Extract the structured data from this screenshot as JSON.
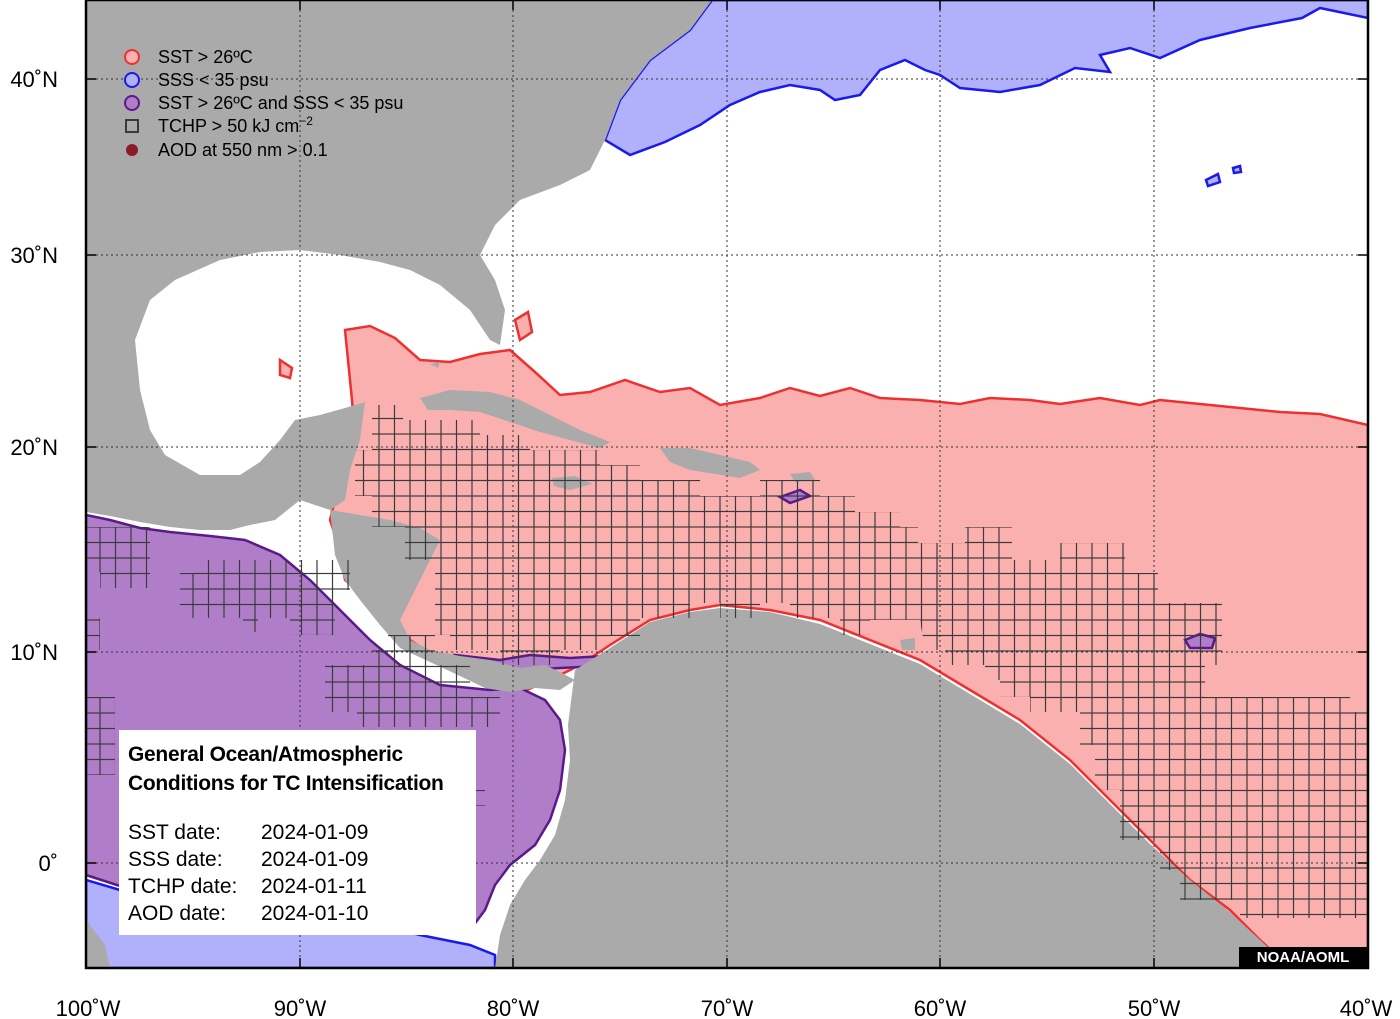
{
  "map": {
    "x_ticks": [
      "100˚W",
      "90˚W",
      "80˚W",
      "70˚W",
      "60˚W",
      "50˚W",
      "40˚W"
    ],
    "y_ticks": [
      "40˚N",
      "30˚N",
      "20˚N",
      "10˚N",
      "0˚"
    ],
    "lon_range": [
      -100,
      -40
    ],
    "lat_range": [
      -5,
      44.5
    ],
    "colors": {
      "land": "#aaaaaa",
      "ocean": "#ffffff",
      "sst_fill": "#fbb0b0",
      "sst_line": "#ee3030",
      "sss_fill": "#b0b0fb",
      "sss_line": "#1a1aee",
      "both_fill": "#b07ec8",
      "both_line": "#5a1a8a",
      "tchp_grid": "#3a3a3a",
      "aod": "#8a1c2a"
    }
  },
  "legend": {
    "items": [
      {
        "icon": "sst-circle-icon",
        "label": "SST > 26ºC"
      },
      {
        "icon": "sss-circle-icon",
        "label": "SSS < 35 psu"
      },
      {
        "icon": "sst-sss-circle-icon",
        "label": "SST > 26ºC and SSS < 35 psu"
      },
      {
        "icon": "tchp-square-icon",
        "label": "TCHP > 50 kJ cm",
        "sup": "−2"
      },
      {
        "icon": "aod-dot-icon",
        "label": "AOD at 550 nm > 0.1"
      }
    ]
  },
  "info": {
    "title_line1": "General Ocean/Atmospheric",
    "title_line2": "Conditions for TC Intensification",
    "rows": [
      {
        "label": "SST date:",
        "value": "2024-01-09"
      },
      {
        "label": "SSS date:",
        "value": "2024-01-09"
      },
      {
        "label": "TCHP date:",
        "value": "2024-01-11"
      },
      {
        "label": "AOD date:",
        "value": "2024-01-10"
      }
    ]
  },
  "credit": "NOAA/AOML"
}
